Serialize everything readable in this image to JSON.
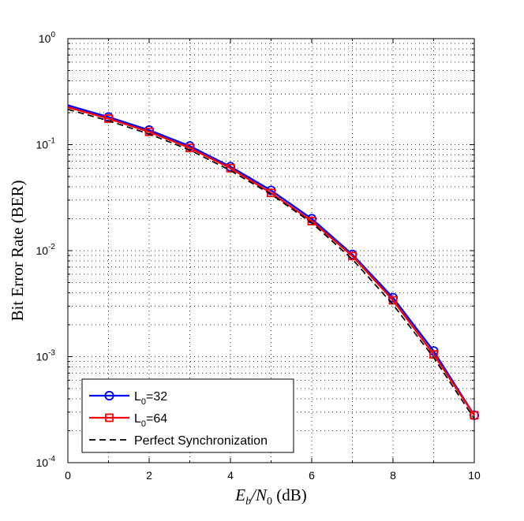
{
  "chart_data": {
    "type": "line",
    "x_scale": "linear",
    "y_scale": "log",
    "xlabel": {
      "main": "E",
      "sub1": "b",
      "slash": "/N",
      "sub2": "0",
      "unit": " (dB)"
    },
    "ylabel": "Bit Error Rate (BER)",
    "xlim": [
      0,
      10
    ],
    "ylim": [
      0.0001,
      1
    ],
    "x_ticks": [
      "0",
      "2",
      "4",
      "6",
      "8",
      "10"
    ],
    "y_ticks": [
      {
        "base": "10",
        "exp": "0"
      },
      {
        "base": "10",
        "exp": "-1"
      },
      {
        "base": "10",
        "exp": "-2"
      },
      {
        "base": "10",
        "exp": "-3"
      },
      {
        "base": "10",
        "exp": "-4"
      }
    ],
    "grid": true,
    "legend_position": "bottom-left",
    "series": [
      {
        "name": "L_0=32",
        "legend": {
          "prefix": "L",
          "sub": "0",
          "suffix": "=32"
        },
        "color": "#0000ff",
        "marker": "circle",
        "dash": "solid",
        "x": [
          0,
          1,
          2,
          3,
          4,
          5,
          6,
          7,
          8,
          9,
          10
        ],
        "y": [
          0.235,
          0.182,
          0.137,
          0.097,
          0.062,
          0.037,
          0.02,
          0.0092,
          0.0036,
          0.00113,
          0.00028
        ]
      },
      {
        "name": "L_0=64",
        "legend": {
          "prefix": "L",
          "sub": "0",
          "suffix": "=64"
        },
        "color": "#ff0000",
        "marker": "square",
        "dash": "solid",
        "x": [
          0,
          1,
          2,
          3,
          4,
          5,
          6,
          7,
          8,
          9,
          10
        ],
        "y": [
          0.225,
          0.176,
          0.132,
          0.093,
          0.06,
          0.035,
          0.019,
          0.0089,
          0.0034,
          0.00105,
          0.00028
        ]
      },
      {
        "name": "Perfect Synchronization",
        "legend": {
          "prefix": "Perfect Synchronization",
          "sub": "",
          "suffix": ""
        },
        "color": "#000000",
        "marker": "none",
        "dash": "dashed",
        "x": [
          0,
          1,
          2,
          3,
          4,
          5,
          6,
          7,
          8,
          9,
          10
        ],
        "y": [
          0.215,
          0.168,
          0.126,
          0.089,
          0.057,
          0.034,
          0.0183,
          0.0083,
          0.0031,
          0.00098,
          0.00026
        ]
      }
    ]
  }
}
